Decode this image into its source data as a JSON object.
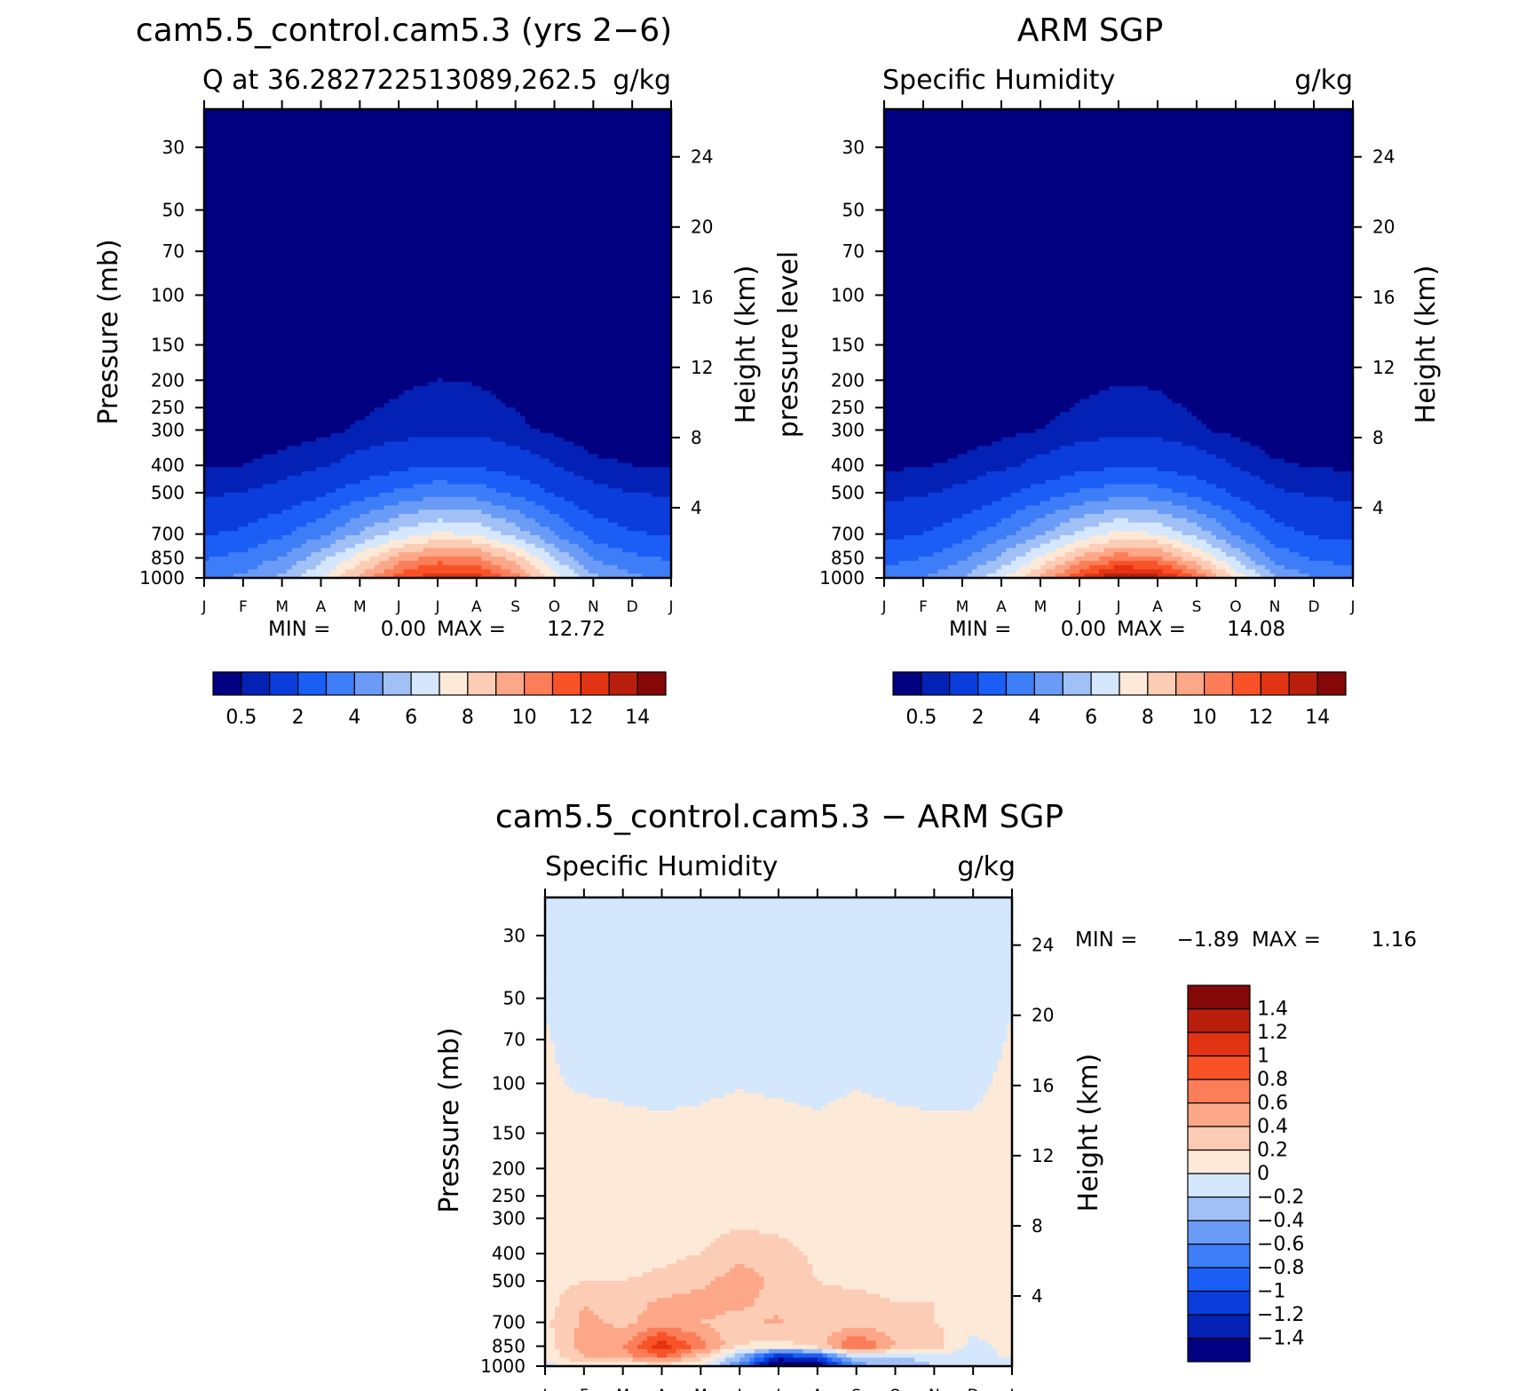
{
  "colors": {
    "model_obs_scale": [
      "#000080",
      "#0321b4",
      "#0a3ddb",
      "#1a5ef6",
      "#3d7df7",
      "#6a9cf7",
      "#a1c1f6",
      "#d4e7fc",
      "#fde9d8",
      "#fdccb4",
      "#fca788",
      "#fc7e58",
      "#fa5227",
      "#e23413",
      "#b91e0c",
      "#840808"
    ],
    "diff_scale": [
      "#000080",
      "#0321b4",
      "#0a3ddb",
      "#1a5ef6",
      "#3d7df7",
      "#6a9cf7",
      "#a1c1f6",
      "#d4e7fc",
      "#fde9d8",
      "#fdccb4",
      "#fca788",
      "#fc7e58",
      "#fa5227",
      "#e23413",
      "#b91e0c",
      "#840808"
    ]
  },
  "chart_data": [
    {
      "id": "model",
      "type": "heatmap",
      "title": "cam5.5_control.cam5.3 (yrs 2−6)",
      "subtitle_left": "Q at 36.282722513089,262.5",
      "subtitle_right": "g/kg",
      "ylabel": "Pressure (mb)",
      "y2label": "Height (km)",
      "x_ticks": [
        "J",
        "F",
        "M",
        "A",
        "M",
        "J",
        "J",
        "A",
        "S",
        "O",
        "N",
        "D",
        "J"
      ],
      "y_ticks": [
        "30",
        "50",
        "70",
        "100",
        "150",
        "200",
        "250",
        "300",
        "400",
        "500",
        "700",
        "850",
        "1000"
      ],
      "y_tick_values": [
        30,
        50,
        70,
        100,
        150,
        200,
        250,
        300,
        400,
        500,
        700,
        850,
        1000
      ],
      "y2_ticks": [
        "24",
        "20",
        "16",
        "12",
        "8",
        "4"
      ],
      "y2_tick_values": [
        24,
        20,
        16,
        12,
        8,
        4
      ],
      "ylim": [
        1000,
        22
      ],
      "xlim": [
        0,
        12
      ],
      "stats": {
        "min_label": "MIN =",
        "min": "0.00",
        "max_label": "MAX =",
        "max": "12.72"
      },
      "min": 0.0,
      "max": 12.72,
      "colorbar_labels": [
        "0.5",
        "2",
        "4",
        "6",
        "8",
        "10",
        "12",
        "14"
      ],
      "levels": [
        0.5,
        1,
        2,
        3,
        4,
        5,
        6,
        7,
        8,
        9,
        10,
        11,
        12,
        13,
        14
      ],
      "profile_levels": [
        1000,
        850,
        700,
        500,
        400,
        300
      ],
      "months": [
        "Jan",
        "Feb",
        "Mar",
        "Apr",
        "May",
        "Jun",
        "Jul",
        "Aug",
        "Sep",
        "Oct",
        "Nov",
        "Dec",
        "Jan"
      ],
      "values": [
        [
          3.8,
          4.2,
          5.2,
          7.0,
          9.3,
          11.5,
          12.7,
          12.4,
          10.4,
          7.6,
          5.2,
          4.2,
          3.8
        ],
        [
          2.9,
          3.3,
          4.1,
          5.6,
          7.5,
          9.4,
          10.5,
          10.2,
          8.4,
          6.0,
          3.9,
          3.2,
          2.9
        ],
        [
          1.9,
          2.2,
          2.8,
          3.8,
          5.1,
          6.4,
          7.2,
          6.9,
          5.6,
          4.0,
          2.6,
          2.1,
          1.9
        ],
        [
          0.9,
          1.0,
          1.3,
          1.8,
          2.5,
          3.2,
          3.7,
          3.5,
          2.8,
          1.9,
          1.2,
          1.0,
          0.9
        ],
        [
          0.45,
          0.5,
          0.65,
          0.9,
          1.3,
          1.7,
          2.0,
          1.9,
          1.5,
          1.0,
          0.6,
          0.5,
          0.45
        ],
        [
          0.2,
          0.22,
          0.28,
          0.38,
          0.55,
          0.7,
          0.82,
          0.78,
          0.6,
          0.4,
          0.26,
          0.22,
          0.2
        ]
      ]
    },
    {
      "id": "obs",
      "type": "heatmap",
      "title": "ARM SGP",
      "subtitle_left": "Specific Humidity",
      "subtitle_right": "g/kg",
      "ylabel": "pressure level",
      "y2label": "Height (km)",
      "x_ticks": [
        "J",
        "F",
        "M",
        "A",
        "M",
        "J",
        "J",
        "A",
        "S",
        "O",
        "N",
        "D",
        "J"
      ],
      "y_ticks": [
        "30",
        "50",
        "70",
        "100",
        "150",
        "200",
        "250",
        "300",
        "400",
        "500",
        "700",
        "850",
        "1000"
      ],
      "y_tick_values": [
        30,
        50,
        70,
        100,
        150,
        200,
        250,
        300,
        400,
        500,
        700,
        850,
        1000
      ],
      "y2_ticks": [
        "24",
        "20",
        "16",
        "12",
        "8",
        "4"
      ],
      "y2_tick_values": [
        24,
        20,
        16,
        12,
        8,
        4
      ],
      "ylim": [
        1000,
        22
      ],
      "xlim": [
        0,
        12
      ],
      "stats": {
        "min_label": "MIN =",
        "min": "0.00",
        "max_label": "MAX =",
        "max": "14.08"
      },
      "min": 0.0,
      "max": 14.08,
      "colorbar_labels": [
        "0.5",
        "2",
        "4",
        "6",
        "8",
        "10",
        "12",
        "14"
      ],
      "levels": [
        0.5,
        1,
        2,
        3,
        4,
        5,
        6,
        7,
        8,
        9,
        10,
        11,
        12,
        13,
        14
      ],
      "profile_levels": [
        1000,
        850,
        700,
        500,
        400,
        300
      ],
      "values": [
        [
          3.6,
          4.0,
          5.0,
          6.8,
          9.2,
          12.0,
          14.0,
          13.4,
          11.0,
          7.8,
          5.0,
          4.0,
          3.6
        ],
        [
          2.6,
          3.0,
          3.8,
          5.2,
          7.1,
          9.2,
          10.6,
          10.2,
          8.2,
          5.8,
          3.6,
          2.9,
          2.6
        ],
        [
          1.7,
          2.0,
          2.6,
          3.6,
          4.9,
          6.3,
          7.3,
          7.0,
          5.6,
          3.9,
          2.4,
          1.9,
          1.7
        ],
        [
          0.8,
          0.9,
          1.2,
          1.7,
          2.4,
          3.1,
          3.6,
          3.4,
          2.7,
          1.8,
          1.1,
          0.9,
          0.8
        ],
        [
          0.42,
          0.46,
          0.6,
          0.85,
          1.2,
          1.6,
          1.9,
          1.8,
          1.4,
          0.95,
          0.56,
          0.46,
          0.42
        ],
        [
          0.18,
          0.2,
          0.26,
          0.36,
          0.5,
          0.66,
          0.78,
          0.74,
          0.56,
          0.38,
          0.24,
          0.2,
          0.18
        ]
      ]
    },
    {
      "id": "diff",
      "type": "heatmap",
      "title": "cam5.5_control.cam5.3 − ARM SGP",
      "subtitle_left": "Specific Humidity",
      "subtitle_right": "g/kg",
      "ylabel": "Pressure (mb)",
      "y2label": "Height (km)",
      "x_ticks": [
        "J",
        "F",
        "M",
        "A",
        "M",
        "J",
        "J",
        "A",
        "S",
        "O",
        "N",
        "D",
        "J"
      ],
      "y_ticks": [
        "30",
        "50",
        "70",
        "100",
        "150",
        "200",
        "250",
        "300",
        "400",
        "500",
        "700",
        "850",
        "1000"
      ],
      "y_tick_values": [
        30,
        50,
        70,
        100,
        150,
        200,
        250,
        300,
        400,
        500,
        700,
        850,
        1000
      ],
      "y2_ticks": [
        "24",
        "20",
        "16",
        "12",
        "8",
        "4"
      ],
      "y2_tick_values": [
        24,
        20,
        16,
        12,
        8,
        4
      ],
      "ylim": [
        1000,
        22
      ],
      "xlim": [
        0,
        12
      ],
      "stats": {
        "min_label": "MIN =",
        "min": "−1.89",
        "max_label": "MAX =",
        "max": "1.16"
      },
      "min": -1.89,
      "max": 1.16,
      "colorbar_labels": [
        "1.4",
        "1.2",
        "1",
        "0.8",
        "0.6",
        "0.4",
        "0.2",
        "0",
        "−0.2",
        "−0.4",
        "−0.6",
        "−0.8",
        "−1",
        "−1.2",
        "−1.4"
      ],
      "levels": [
        -1.4,
        -1.2,
        -1.0,
        -0.8,
        -0.6,
        -0.4,
        -0.2,
        0,
        0.2,
        0.4,
        0.6,
        0.8,
        1.0,
        1.2,
        1.4
      ],
      "profile_levels": [
        1000,
        925,
        850,
        700,
        600,
        500,
        400,
        300,
        150,
        80,
        30
      ],
      "values": [
        [
          -0.1,
          0.1,
          0.0,
          0.1,
          0.0,
          -0.6,
          -1.89,
          -1.6,
          -0.5,
          -0.4,
          -0.2,
          -0.2,
          -0.1
        ],
        [
          0.05,
          0.4,
          0.5,
          0.8,
          0.3,
          -0.3,
          -1.2,
          -1.0,
          -0.1,
          -0.2,
          -0.1,
          -0.1,
          0.05
        ],
        [
          0.1,
          0.5,
          0.6,
          1.16,
          0.7,
          0.2,
          0.1,
          0.3,
          0.9,
          0.4,
          0.3,
          -0.1,
          0.1
        ],
        [
          0.15,
          0.45,
          0.35,
          0.5,
          0.4,
          0.3,
          0.45,
          0.2,
          0.3,
          0.25,
          0.2,
          0.15,
          0.15
        ],
        [
          0.1,
          0.4,
          0.3,
          0.45,
          0.5,
          0.45,
          0.3,
          0.25,
          0.3,
          0.2,
          0.2,
          0.1,
          0.1
        ],
        [
          0.1,
          0.2,
          0.2,
          0.25,
          0.35,
          0.5,
          0.35,
          0.2,
          0.15,
          0.1,
          0.1,
          0.1,
          0.1
        ],
        [
          0.05,
          0.1,
          0.1,
          0.15,
          0.2,
          0.35,
          0.3,
          0.15,
          0.1,
          0.1,
          0.1,
          0.05,
          0.05
        ],
        [
          0.02,
          0.08,
          0.08,
          0.08,
          0.1,
          0.15,
          0.1,
          0.08,
          0.05,
          0.05,
          0.05,
          0.05,
          0.02
        ],
        [
          0.01,
          0.05,
          0.03,
          0.02,
          0.03,
          0.05,
          0.04,
          0.02,
          0.05,
          0.03,
          0.02,
          0.02,
          0.05
        ],
        [
          0.02,
          -0.05,
          -0.05,
          -0.05,
          -0.05,
          -0.04,
          -0.05,
          -0.05,
          -0.04,
          -0.05,
          -0.05,
          -0.05,
          0.02
        ],
        [
          -0.05,
          -0.05,
          -0.05,
          -0.05,
          -0.05,
          -0.05,
          -0.05,
          -0.05,
          -0.05,
          -0.05,
          -0.05,
          -0.05,
          -0.05
        ]
      ]
    }
  ]
}
